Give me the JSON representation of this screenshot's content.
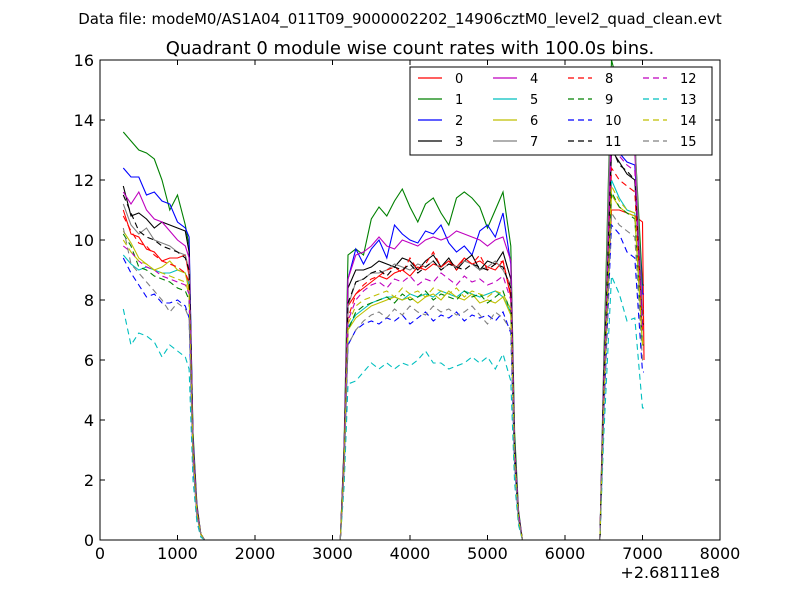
{
  "chart_data": {
    "type": "line",
    "suptitle": "Data file: modeM0/AS1A04_011T09_9000002202_14906cztM0_level2_quad_clean.evt",
    "title": "Quadrant 0 module wise count rates with 100.0s bins.",
    "xlabel": "",
    "ylabel": "",
    "x_offset_label": "+2.68111e8",
    "xlim": [
      0,
      8000
    ],
    "ylim": [
      0,
      16
    ],
    "xticks": [
      0,
      1000,
      2000,
      3000,
      4000,
      5000,
      6000,
      7000,
      8000
    ],
    "yticks": [
      0,
      2,
      4,
      6,
      8,
      10,
      12,
      14,
      16
    ],
    "grid": false,
    "legend_position": "top-right",
    "legend_columns": 4,
    "x": [
      300,
      400,
      500,
      600,
      700,
      800,
      900,
      1000,
      1100,
      1150,
      1200,
      1250,
      1300,
      1350,
      1500,
      2000,
      2500,
      3000,
      3100,
      3150,
      3200,
      3300,
      3400,
      3500,
      3600,
      3700,
      3800,
      3900,
      4000,
      4100,
      4200,
      4300,
      4400,
      4500,
      4600,
      4700,
      4800,
      4900,
      5000,
      5100,
      5200,
      5300,
      5350,
      5400,
      5450,
      5500,
      6000,
      6400,
      6450,
      6500,
      6600,
      6700,
      6800,
      6900,
      7000,
      7020
    ],
    "series": [
      {
        "name": "0",
        "color": "#ff0000",
        "dash": "solid",
        "values": [
          11.0,
          10.2,
          10.1,
          9.7,
          9.6,
          9.3,
          9.4,
          9.4,
          9.5,
          8.8,
          3.3,
          1.1,
          0.2,
          0,
          0,
          0,
          0,
          0,
          0,
          2.8,
          7.8,
          8.2,
          8.4,
          8.6,
          8.8,
          8.7,
          8.9,
          9.0,
          8.8,
          9.1,
          9.0,
          9.2,
          9.1,
          9.3,
          9.1,
          9.4,
          9.2,
          9.3,
          9.1,
          9.0,
          9.3,
          8.1,
          3.0,
          0.8,
          0,
          0,
          0,
          0,
          0,
          5.0,
          11.0,
          11.0,
          10.9,
          10.8,
          10.6,
          6.0
        ]
      },
      {
        "name": "1",
        "color": "#008000",
        "dash": "solid",
        "values": [
          13.6,
          13.3,
          13.0,
          12.9,
          12.7,
          12.0,
          11.0,
          11.5,
          10.5,
          9.8,
          3.6,
          1.2,
          0.2,
          0,
          0,
          0,
          0,
          0,
          0,
          3.2,
          9.5,
          9.7,
          9.5,
          10.7,
          11.1,
          10.8,
          11.3,
          11.7,
          11.1,
          10.6,
          11.2,
          11.4,
          10.9,
          10.5,
          11.4,
          11.6,
          11.4,
          11.1,
          10.4,
          11.0,
          11.6,
          9.8,
          3.6,
          1.0,
          0,
          0,
          0,
          0,
          0,
          6.0,
          16.0,
          15.0,
          14.0,
          13.3,
          8.5,
          8.5
        ]
      },
      {
        "name": "2",
        "color": "#0000ff",
        "dash": "solid",
        "values": [
          12.4,
          12.1,
          12.1,
          11.5,
          11.6,
          11.3,
          11.2,
          10.6,
          10.4,
          10.1,
          3.4,
          1.1,
          0.2,
          0,
          0,
          0,
          0,
          0,
          0,
          3.0,
          8.7,
          9.7,
          9.2,
          9.7,
          10.0,
          9.4,
          10.5,
          10.2,
          10.0,
          9.9,
          10.3,
          10.2,
          10.5,
          9.9,
          9.6,
          9.8,
          9.5,
          10.3,
          10.5,
          10.1,
          10.9,
          9.2,
          3.2,
          0.9,
          0,
          0,
          0,
          0,
          0,
          5.5,
          13.8,
          12.9,
          12.6,
          12.5,
          8.2,
          8.2
        ]
      },
      {
        "name": "3",
        "color": "#000000",
        "dash": "solid",
        "values": [
          11.8,
          10.8,
          10.9,
          10.7,
          10.4,
          10.6,
          10.5,
          10.4,
          10.3,
          9.6,
          3.2,
          1.0,
          0.2,
          0,
          0,
          0,
          0,
          0,
          0,
          3.0,
          8.4,
          9.0,
          9.0,
          9.1,
          9.3,
          9.2,
          9.1,
          9.4,
          9.3,
          9.0,
          9.3,
          9.5,
          9.1,
          9.4,
          9.0,
          9.3,
          9.5,
          9.0,
          9.3,
          9.2,
          9.6,
          8.7,
          3.0,
          0.8,
          0,
          0,
          0,
          0,
          0,
          5.0,
          13.0,
          12.6,
          12.2,
          12.0,
          7.5,
          7.5
        ]
      },
      {
        "name": "4",
        "color": "#bf00bf",
        "dash": "solid",
        "values": [
          11.6,
          11.2,
          11.6,
          11.0,
          10.7,
          10.6,
          10.3,
          10.0,
          9.8,
          9.4,
          3.3,
          1.1,
          0.2,
          0,
          0,
          0,
          0,
          0,
          0,
          2.9,
          8.7,
          9.5,
          9.6,
          9.8,
          10.1,
          9.8,
          9.7,
          10.0,
          9.9,
          9.8,
          10.0,
          10.1,
          10.0,
          10.1,
          10.3,
          10.2,
          10.1,
          10.0,
          9.8,
          10.0,
          10.1,
          9.3,
          3.1,
          0.9,
          0,
          0,
          0,
          0,
          0,
          5.4,
          14.5,
          13.2,
          13.0,
          12.9,
          7.7,
          7.7
        ]
      },
      {
        "name": "5",
        "color": "#00bfbf",
        "dash": "solid",
        "values": [
          9.5,
          9.2,
          9.0,
          9.1,
          9.0,
          8.9,
          8.9,
          9.0,
          8.9,
          8.5,
          2.9,
          1.0,
          0.2,
          0,
          0,
          0,
          0,
          0,
          0,
          2.5,
          7.1,
          7.5,
          7.7,
          7.9,
          8.0,
          8.1,
          8.1,
          8.0,
          8.2,
          8.1,
          8.2,
          8.1,
          8.3,
          8.2,
          8.1,
          8.3,
          8.2,
          8.1,
          8.2,
          8.3,
          8.1,
          7.6,
          2.7,
          0.7,
          0,
          0,
          0,
          0,
          0,
          4.6,
          12.0,
          11.4,
          11.0,
          10.9,
          6.5,
          6.5
        ]
      },
      {
        "name": "6",
        "color": "#bfbf00",
        "dash": "solid",
        "values": [
          10.3,
          9.9,
          9.4,
          9.2,
          9.0,
          9.1,
          9.3,
          9.0,
          8.9,
          8.3,
          2.9,
          0.9,
          0.2,
          0,
          0,
          0,
          0,
          0,
          0,
          2.5,
          7.0,
          7.4,
          7.6,
          7.8,
          7.9,
          8.0,
          8.1,
          8.0,
          8.1,
          7.9,
          8.1,
          8.2,
          8.0,
          8.3,
          8.1,
          8.0,
          8.2,
          7.9,
          8.0,
          7.9,
          8.1,
          7.5,
          2.7,
          0.7,
          0,
          0,
          0,
          0,
          0,
          4.5,
          11.5,
          11.1,
          10.9,
          10.8,
          6.5,
          6.5
        ]
      },
      {
        "name": "7",
        "color": "#808080",
        "dash": "solid",
        "values": [
          11.2,
          10.5,
          10.2,
          10.4,
          10.0,
          9.9,
          9.8,
          9.6,
          9.5,
          9.0,
          3.1,
          1.0,
          0.2,
          0,
          0,
          0,
          0,
          0,
          0,
          2.7,
          7.8,
          8.6,
          8.7,
          8.9,
          8.9,
          9.0,
          9.2,
          9.1,
          9.0,
          9.2,
          9.1,
          9.3,
          9.0,
          9.2,
          9.1,
          9.3,
          9.2,
          9.0,
          9.1,
          9.3,
          9.0,
          8.5,
          3.0,
          0.8,
          0,
          0,
          0,
          0,
          0,
          5.2,
          15.8,
          15.0,
          14.0,
          13.5,
          7.5,
          7.5
        ]
      },
      {
        "name": "8",
        "color": "#ff0000",
        "dash": "dashed",
        "values": [
          10.8,
          10.3,
          9.9,
          9.8,
          9.5,
          9.3,
          9.2,
          9.1,
          8.9,
          8.6,
          3.0,
          1.0,
          0.2,
          0,
          0,
          0,
          0,
          0,
          0,
          2.6,
          7.4,
          8.2,
          8.5,
          8.7,
          8.8,
          9.0,
          9.1,
          8.9,
          9.4,
          9.0,
          9.2,
          9.6,
          9.1,
          9.3,
          9.0,
          9.4,
          9.2,
          9.5,
          9.0,
          9.2,
          9.3,
          8.2,
          2.9,
          0.8,
          0,
          0,
          0,
          0,
          0,
          5.0,
          12.4,
          12.0,
          11.8,
          11.6,
          7.0,
          7.0
        ]
      },
      {
        "name": "9",
        "color": "#008000",
        "dash": "dashed",
        "values": [
          10.2,
          9.8,
          9.1,
          9.0,
          8.8,
          8.7,
          8.6,
          8.4,
          8.3,
          8.0,
          2.8,
          0.9,
          0.2,
          0,
          0,
          0,
          0,
          0,
          0,
          2.4,
          7.0,
          7.6,
          7.8,
          7.9,
          8.0,
          8.1,
          7.9,
          8.2,
          8.0,
          8.1,
          8.3,
          8.0,
          8.2,
          8.1,
          8.0,
          8.3,
          8.1,
          8.2,
          7.9,
          8.1,
          8.3,
          7.6,
          2.7,
          0.7,
          0,
          0,
          0,
          0,
          0,
          4.6,
          11.6,
          11.1,
          10.9,
          10.7,
          6.5,
          6.5
        ]
      },
      {
        "name": "10",
        "color": "#0000ff",
        "dash": "dashed",
        "values": [
          9.4,
          8.9,
          8.5,
          8.1,
          8.2,
          7.9,
          7.9,
          8.0,
          7.8,
          7.4,
          2.6,
          0.8,
          0.2,
          0,
          0,
          0,
          0,
          0,
          0,
          2.3,
          6.5,
          7.0,
          7.2,
          7.3,
          7.2,
          7.4,
          7.3,
          7.5,
          7.2,
          7.4,
          7.6,
          7.3,
          7.5,
          7.4,
          7.6,
          7.3,
          7.5,
          7.4,
          7.5,
          7.3,
          7.6,
          6.9,
          2.5,
          0.7,
          0,
          0,
          0,
          0,
          0,
          4.2,
          10.5,
          10.2,
          9.6,
          9.4,
          5.6,
          5.6
        ]
      },
      {
        "name": "11",
        "color": "#000000",
        "dash": "dashed",
        "values": [
          11.5,
          10.9,
          10.3,
          10.1,
          10.0,
          9.8,
          9.7,
          9.6,
          9.4,
          9.0,
          3.1,
          1.0,
          0.2,
          0,
          0,
          0,
          0,
          0,
          0,
          2.7,
          7.9,
          8.6,
          8.7,
          8.9,
          9.0,
          8.8,
          9.1,
          9.0,
          9.2,
          8.9,
          9.1,
          9.3,
          9.0,
          9.2,
          9.1,
          9.0,
          9.2,
          9.1,
          9.0,
          9.2,
          9.1,
          8.4,
          3.0,
          0.8,
          0,
          0,
          0,
          0,
          0,
          5.2,
          13.1,
          12.5,
          12.3,
          12.0,
          7.2,
          7.2
        ]
      },
      {
        "name": "12",
        "color": "#bf00bf",
        "dash": "dashed",
        "values": [
          9.8,
          9.6,
          9.3,
          9.1,
          9.0,
          8.8,
          8.7,
          8.6,
          8.5,
          8.2,
          2.8,
          0.9,
          0.2,
          0,
          0,
          0,
          0,
          0,
          0,
          2.4,
          7.3,
          8.0,
          8.3,
          8.5,
          8.6,
          8.4,
          8.7,
          8.6,
          8.8,
          8.5,
          8.7,
          8.6,
          8.9,
          8.7,
          8.5,
          8.8,
          8.6,
          8.7,
          8.5,
          8.6,
          8.8,
          8.0,
          2.8,
          0.8,
          0,
          0,
          0,
          0,
          0,
          4.8,
          13.5,
          12.8,
          12.5,
          12.3,
          7.0,
          7.0
        ]
      },
      {
        "name": "13",
        "color": "#00bfbf",
        "dash": "dashed",
        "values": [
          7.7,
          6.5,
          6.9,
          6.8,
          6.6,
          6.1,
          6.5,
          6.3,
          6.1,
          5.7,
          2.0,
          0.6,
          0.1,
          0,
          0,
          0,
          0,
          0,
          0,
          1.8,
          5.2,
          5.3,
          5.6,
          5.9,
          5.7,
          5.9,
          5.7,
          5.9,
          5.8,
          6.0,
          6.3,
          5.9,
          5.9,
          5.7,
          5.8,
          5.9,
          6.1,
          5.9,
          6.1,
          5.7,
          6.2,
          5.3,
          1.9,
          0.5,
          0,
          0,
          0,
          0,
          0,
          3.5,
          8.8,
          8.2,
          7.3,
          7.4,
          4.4,
          4.4
        ]
      },
      {
        "name": "14",
        "color": "#bfbf00",
        "dash": "dashed",
        "values": [
          10.0,
          9.6,
          9.3,
          9.2,
          9.0,
          8.9,
          8.8,
          8.7,
          8.6,
          8.2,
          2.9,
          0.9,
          0.2,
          0,
          0,
          0,
          0,
          0,
          0,
          2.5,
          7.2,
          7.8,
          8.0,
          8.1,
          8.2,
          8.3,
          8.1,
          8.4,
          8.2,
          8.3,
          8.1,
          8.4,
          8.3,
          8.2,
          8.4,
          8.1,
          8.3,
          8.2,
          8.1,
          8.3,
          8.2,
          7.7,
          2.7,
          0.7,
          0,
          0,
          0,
          0,
          0,
          4.6,
          11.8,
          11.3,
          11.0,
          10.9,
          6.6,
          6.6
        ]
      },
      {
        "name": "15",
        "color": "#808080",
        "dash": "dashed",
        "values": [
          10.4,
          9.2,
          8.9,
          8.6,
          8.3,
          8.0,
          7.6,
          7.9,
          7.7,
          7.4,
          2.6,
          0.8,
          0.2,
          0,
          0,
          0,
          0,
          0,
          0,
          2.3,
          6.5,
          7.0,
          7.3,
          7.5,
          7.6,
          7.4,
          7.7,
          7.5,
          7.8,
          7.6,
          7.5,
          7.8,
          7.6,
          7.7,
          7.5,
          7.6,
          7.8,
          7.5,
          7.2,
          7.6,
          7.4,
          7.0,
          2.5,
          0.7,
          0,
          0,
          0,
          0,
          0,
          4.3,
          10.9,
          10.5,
          10.3,
          10.1,
          6.0,
          6.0
        ]
      }
    ]
  }
}
